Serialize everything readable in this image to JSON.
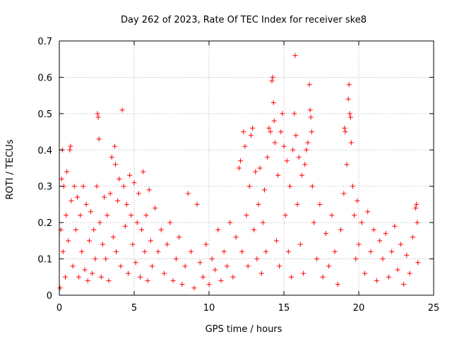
{
  "chart_data": {
    "type": "scatter",
    "title": "Day 262 of 2023, Rate Of TEC Index for receiver ske8",
    "xlabel": "GPS time / hours",
    "ylabel": "ROTI / TECUs",
    "xlim": [
      0,
      25
    ],
    "ylim": [
      0,
      0.7
    ],
    "xticks": [
      "0",
      "5",
      "10",
      "15",
      "20",
      "25"
    ],
    "yticks": [
      "0",
      "0.1",
      "0.2",
      "0.3",
      "0.4",
      "0.5",
      "0.6",
      "0.7"
    ],
    "grid": true,
    "marker": "+",
    "color": "#ff0000",
    "series": [
      {
        "points": [
          [
            0.05,
            0.02
          ],
          [
            0.1,
            0.18
          ],
          [
            0.15,
            0.32
          ],
          [
            0.2,
            0.4
          ],
          [
            0.25,
            0.12
          ],
          [
            0.3,
            0.3
          ],
          [
            0.4,
            0.05
          ],
          [
            0.45,
            0.22
          ],
          [
            0.5,
            0.34
          ],
          [
            0.6,
            0.15
          ],
          [
            0.7,
            0.4
          ],
          [
            0.75,
            0.41
          ],
          [
            0.8,
            0.26
          ],
          [
            0.9,
            0.08
          ],
          [
            1.0,
            0.3
          ],
          [
            1.1,
            0.18
          ],
          [
            1.2,
            0.27
          ],
          [
            1.3,
            0.05
          ],
          [
            1.4,
            0.22
          ],
          [
            1.5,
            0.12
          ],
          [
            1.6,
            0.3
          ],
          [
            1.7,
            0.07
          ],
          [
            1.8,
            0.25
          ],
          [
            1.9,
            0.04
          ],
          [
            2.0,
            0.15
          ],
          [
            2.1,
            0.23
          ],
          [
            2.2,
            0.06
          ],
          [
            2.3,
            0.18
          ],
          [
            2.4,
            0.1
          ],
          [
            2.5,
            0.3
          ],
          [
            2.55,
            0.5
          ],
          [
            2.6,
            0.49
          ],
          [
            2.65,
            0.43
          ],
          [
            2.7,
            0.2
          ],
          [
            2.8,
            0.05
          ],
          [
            2.9,
            0.14
          ],
          [
            3.0,
            0.27
          ],
          [
            3.1,
            0.1
          ],
          [
            3.2,
            0.22
          ],
          [
            3.3,
            0.04
          ],
          [
            3.4,
            0.28
          ],
          [
            3.5,
            0.38
          ],
          [
            3.6,
            0.16
          ],
          [
            3.7,
            0.41
          ],
          [
            3.75,
            0.36
          ],
          [
            3.8,
            0.12
          ],
          [
            3.9,
            0.26
          ],
          [
            4.0,
            0.32
          ],
          [
            4.1,
            0.08
          ],
          [
            4.2,
            0.51
          ],
          [
            4.3,
            0.3
          ],
          [
            4.4,
            0.19
          ],
          [
            4.5,
            0.25
          ],
          [
            4.6,
            0.06
          ],
          [
            4.7,
            0.33
          ],
          [
            4.8,
            0.22
          ],
          [
            4.9,
            0.14
          ],
          [
            5.0,
            0.31
          ],
          [
            5.1,
            0.09
          ],
          [
            5.2,
            0.2
          ],
          [
            5.3,
            0.28
          ],
          [
            5.4,
            0.05
          ],
          [
            5.5,
            0.18
          ],
          [
            5.6,
            0.34
          ],
          [
            5.7,
            0.12
          ],
          [
            5.8,
            0.22
          ],
          [
            5.9,
            0.04
          ],
          [
            6.0,
            0.29
          ],
          [
            6.1,
            0.15
          ],
          [
            6.2,
            0.08
          ],
          [
            6.4,
            0.24
          ],
          [
            6.6,
            0.12
          ],
          [
            6.8,
            0.18
          ],
          [
            7.0,
            0.06
          ],
          [
            7.2,
            0.14
          ],
          [
            7.4,
            0.2
          ],
          [
            7.6,
            0.04
          ],
          [
            7.8,
            0.1
          ],
          [
            8.0,
            0.16
          ],
          [
            8.2,
            0.03
          ],
          [
            8.4,
            0.08
          ],
          [
            8.6,
            0.28
          ],
          [
            8.8,
            0.12
          ],
          [
            9.0,
            0.02
          ],
          [
            9.2,
            0.25
          ],
          [
            9.4,
            0.09
          ],
          [
            9.6,
            0.05
          ],
          [
            9.8,
            0.14
          ],
          [
            10.0,
            0.03
          ],
          [
            10.2,
            0.1
          ],
          [
            10.4,
            0.07
          ],
          [
            10.6,
            0.18
          ],
          [
            10.8,
            0.04
          ],
          [
            11.0,
            0.12
          ],
          [
            11.2,
            0.08
          ],
          [
            11.4,
            0.2
          ],
          [
            11.6,
            0.05
          ],
          [
            11.8,
            0.16
          ],
          [
            12.0,
            0.35
          ],
          [
            12.1,
            0.37
          ],
          [
            12.2,
            0.12
          ],
          [
            12.3,
            0.45
          ],
          [
            12.4,
            0.41
          ],
          [
            12.5,
            0.22
          ],
          [
            12.6,
            0.08
          ],
          [
            12.7,
            0.3
          ],
          [
            12.8,
            0.44
          ],
          [
            12.9,
            0.46
          ],
          [
            13.0,
            0.18
          ],
          [
            13.1,
            0.34
          ],
          [
            13.2,
            0.1
          ],
          [
            13.3,
            0.25
          ],
          [
            13.4,
            0.35
          ],
          [
            13.5,
            0.06
          ],
          [
            13.6,
            0.2
          ],
          [
            13.7,
            0.29
          ],
          [
            13.8,
            0.12
          ],
          [
            13.9,
            0.38
          ],
          [
            14.0,
            0.46
          ],
          [
            14.1,
            0.45
          ],
          [
            14.2,
            0.59
          ],
          [
            14.25,
            0.6
          ],
          [
            14.3,
            0.53
          ],
          [
            14.35,
            0.48
          ],
          [
            14.4,
            0.42
          ],
          [
            14.5,
            0.15
          ],
          [
            14.6,
            0.33
          ],
          [
            14.7,
            0.08
          ],
          [
            14.8,
            0.45
          ],
          [
            14.9,
            0.5
          ],
          [
            15.0,
            0.41
          ],
          [
            15.1,
            0.22
          ],
          [
            15.2,
            0.37
          ],
          [
            15.3,
            0.12
          ],
          [
            15.4,
            0.3
          ],
          [
            15.5,
            0.05
          ],
          [
            15.6,
            0.4
          ],
          [
            15.7,
            0.5
          ],
          [
            15.75,
            0.66
          ],
          [
            15.8,
            0.44
          ],
          [
            15.9,
            0.25
          ],
          [
            16.0,
            0.38
          ],
          [
            16.1,
            0.14
          ],
          [
            16.2,
            0.33
          ],
          [
            16.3,
            0.06
          ],
          [
            16.4,
            0.36
          ],
          [
            16.5,
            0.4
          ],
          [
            16.6,
            0.42
          ],
          [
            16.7,
            0.58
          ],
          [
            16.75,
            0.51
          ],
          [
            16.8,
            0.49
          ],
          [
            16.85,
            0.45
          ],
          [
            16.9,
            0.3
          ],
          [
            17.0,
            0.2
          ],
          [
            17.2,
            0.1
          ],
          [
            17.4,
            0.25
          ],
          [
            17.6,
            0.05
          ],
          [
            17.8,
            0.17
          ],
          [
            18.0,
            0.08
          ],
          [
            18.2,
            0.22
          ],
          [
            18.4,
            0.12
          ],
          [
            18.6,
            0.03
          ],
          [
            18.8,
            0.18
          ],
          [
            19.0,
            0.28
          ],
          [
            19.05,
            0.46
          ],
          [
            19.1,
            0.45
          ],
          [
            19.2,
            0.36
          ],
          [
            19.3,
            0.54
          ],
          [
            19.35,
            0.58
          ],
          [
            19.4,
            0.5
          ],
          [
            19.45,
            0.49
          ],
          [
            19.5,
            0.42
          ],
          [
            19.6,
            0.3
          ],
          [
            19.7,
            0.22
          ],
          [
            19.8,
            0.1
          ],
          [
            19.9,
            0.26
          ],
          [
            20.0,
            0.14
          ],
          [
            20.2,
            0.2
          ],
          [
            20.4,
            0.06
          ],
          [
            20.6,
            0.23
          ],
          [
            20.8,
            0.12
          ],
          [
            21.0,
            0.18
          ],
          [
            21.2,
            0.04
          ],
          [
            21.4,
            0.15
          ],
          [
            21.6,
            0.1
          ],
          [
            21.8,
            0.17
          ],
          [
            22.0,
            0.05
          ],
          [
            22.2,
            0.12
          ],
          [
            22.4,
            0.19
          ],
          [
            22.6,
            0.07
          ],
          [
            22.8,
            0.14
          ],
          [
            23.0,
            0.03
          ],
          [
            23.2,
            0.11
          ],
          [
            23.4,
            0.06
          ],
          [
            23.6,
            0.16
          ],
          [
            23.8,
            0.24
          ],
          [
            23.85,
            0.25
          ],
          [
            23.9,
            0.2
          ],
          [
            23.95,
            0.09
          ]
        ]
      }
    ]
  }
}
